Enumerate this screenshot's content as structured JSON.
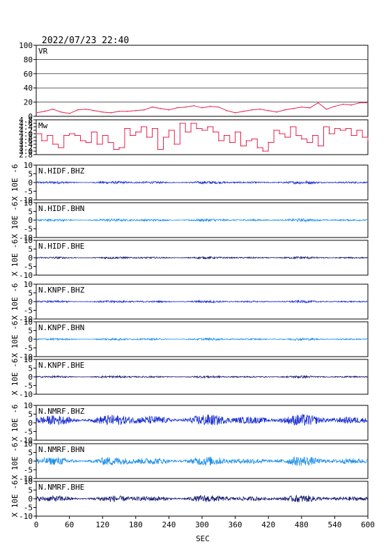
{
  "timestamp": "2022/07/23 22:40",
  "chart_data": [
    {
      "type": "area",
      "label": "VR",
      "ylim": [
        0,
        100
      ],
      "yticks": [
        0,
        20,
        40,
        60,
        80,
        100
      ],
      "yticks_labels": [
        "0",
        "20",
        "40",
        "60",
        "80",
        "100"
      ],
      "grid": true,
      "color": "#e8204b",
      "x": [
        0,
        15,
        30,
        45,
        60,
        75,
        90,
        105,
        120,
        135,
        150,
        165,
        180,
        195,
        210,
        225,
        240,
        255,
        270,
        285,
        300,
        315,
        330,
        345,
        360,
        375,
        390,
        405,
        420,
        435,
        450,
        465,
        480,
        495,
        510,
        525,
        540,
        555,
        570,
        585,
        600
      ],
      "y": [
        5,
        7,
        10,
        6,
        4,
        9,
        10,
        8,
        6,
        5,
        7,
        7,
        8,
        9,
        13,
        11,
        9,
        12,
        13,
        15,
        12,
        14,
        13,
        8,
        5,
        7,
        9,
        10,
        8,
        6,
        9,
        11,
        13,
        12,
        19,
        10,
        14,
        17,
        16,
        19,
        19
      ]
    },
    {
      "type": "line",
      "label": "Mw",
      "ylim": [
        2.8,
        4.8
      ],
      "yticks": [
        2.8,
        3.0,
        3.2,
        3.4,
        3.6,
        3.8,
        4.0,
        4.2,
        4.4,
        4.6,
        4.8
      ],
      "yticks_labels": [
        "2.8",
        "3.0",
        "3.2",
        "3.4",
        "3.6",
        "3.8",
        "4.0",
        "4.2",
        "4.4",
        "4.6",
        "4.8"
      ],
      "grid": false,
      "color": "#e8204b",
      "x": [
        0,
        10,
        20,
        30,
        40,
        50,
        60,
        70,
        80,
        90,
        100,
        110,
        120,
        130,
        140,
        150,
        160,
        170,
        180,
        190,
        200,
        210,
        220,
        230,
        240,
        250,
        260,
        270,
        280,
        290,
        300,
        310,
        320,
        330,
        340,
        350,
        360,
        370,
        380,
        390,
        400,
        410,
        420,
        430,
        440,
        450,
        460,
        470,
        480,
        490,
        500,
        510,
        520,
        530,
        540,
        550,
        560,
        570,
        580,
        590,
        600
      ],
      "y": [
        4.0,
        3.6,
        3.9,
        3.4,
        3.2,
        3.9,
        4.0,
        3.9,
        3.6,
        3.5,
        4.1,
        3.4,
        3.9,
        3.5,
        3.1,
        3.2,
        4.3,
        3.9,
        4.1,
        4.4,
        3.8,
        4.3,
        3.1,
        3.8,
        4.2,
        3.4,
        4.6,
        4.1,
        4.6,
        4.3,
        4.2,
        4.4,
        4.1,
        3.6,
        3.9,
        3.5,
        4.1,
        3.3,
        3.6,
        3.7,
        3.2,
        3.0,
        3.5,
        4.2,
        4.0,
        3.8,
        4.4,
        3.9,
        3.7,
        3.5,
        3.9,
        3.3,
        4.4,
        4.0,
        4.3,
        4.2,
        4.3,
        3.9,
        4.2,
        3.8,
        3.6
      ]
    },
    {
      "type": "line",
      "label": "N.HIDF.BHZ",
      "ylim": [
        -10,
        10
      ],
      "yticks": [
        -10,
        -5,
        0,
        5,
        10
      ],
      "yticks_labels": [
        "-10",
        "-5",
        "0",
        "5",
        "10"
      ],
      "ylabel": "X 10E -6",
      "color": "#1a2fd0",
      "amplitude": 0.5
    },
    {
      "type": "line",
      "label": "N.HIDF.BHN",
      "ylim": [
        -10,
        10
      ],
      "yticks": [
        -10,
        -5,
        0,
        5,
        10
      ],
      "yticks_labels": [
        "-10",
        "-5",
        "0",
        "5",
        "10"
      ],
      "ylabel": "X 10E -6",
      "color": "#1e90e8",
      "amplitude": 0.5
    },
    {
      "type": "line",
      "label": "N.HIDF.BHE",
      "ylim": [
        -10,
        10
      ],
      "yticks": [
        -10,
        -5,
        0,
        5,
        10
      ],
      "yticks_labels": [
        "-10",
        "-5",
        "0",
        "5",
        "10"
      ],
      "ylabel": "X 10E -6",
      "color": "#141a6e",
      "amplitude": 0.4
    },
    {
      "type": "line",
      "label": "N.KNPF.BHZ",
      "ylim": [
        -10,
        10
      ],
      "yticks": [
        -10,
        -5,
        0,
        5,
        10
      ],
      "yticks_labels": [
        "-10",
        "-5",
        "0",
        "5",
        "10"
      ],
      "ylabel": "X 10E -6",
      "color": "#1a2fd0",
      "amplitude": 0.4
    },
    {
      "type": "line",
      "label": "N.KNPF.BHN",
      "ylim": [
        -10,
        10
      ],
      "yticks": [
        -10,
        -5,
        0,
        5,
        10
      ],
      "yticks_labels": [
        "-10",
        "-5",
        "0",
        "5",
        "10"
      ],
      "ylabel": "X 10E -6",
      "color": "#1e90e8",
      "amplitude": 0.4
    },
    {
      "type": "line",
      "label": "N.KNPF.BHE",
      "ylim": [
        -10,
        10
      ],
      "yticks": [
        -10,
        -5,
        0,
        5,
        10
      ],
      "yticks_labels": [
        "-10",
        "-5",
        "0",
        "5",
        "10"
      ],
      "ylabel": "X 10E -6",
      "color": "#141a6e",
      "amplitude": 0.4
    },
    {
      "type": "line",
      "label": "N.NMRF.BHZ",
      "ylim": [
        -10,
        10
      ],
      "yticks": [
        -10,
        -5,
        0,
        5,
        10
      ],
      "yticks_labels": [
        "-10",
        "-5",
        "0",
        "5",
        "10"
      ],
      "ylabel": "X 10E -6",
      "color": "#1a2fd0",
      "amplitude": 2.0,
      "offset": 1.5
    },
    {
      "type": "line",
      "label": "N.NMRF.BHN",
      "ylim": [
        -10,
        10
      ],
      "yticks": [
        -10,
        -5,
        0,
        5,
        10
      ],
      "yticks_labels": [
        "-10",
        "-5",
        "0",
        "5",
        "10"
      ],
      "ylabel": "X 10E -6",
      "color": "#1e90e8",
      "amplitude": 1.6
    },
    {
      "type": "line",
      "label": "N.NMRF.BHE",
      "ylim": [
        -10,
        10
      ],
      "yticks": [
        -10,
        -5,
        0,
        5,
        10
      ],
      "yticks_labels": [
        "-10",
        "-5",
        "0",
        "5",
        "10"
      ],
      "ylabel": "X 10E -6",
      "color": "#141a6e",
      "amplitude": 1.2
    }
  ],
  "x_axis": {
    "label": "SEC",
    "xlim": [
      0,
      600
    ],
    "ticks": [
      0,
      60,
      120,
      180,
      240,
      300,
      360,
      420,
      480,
      540,
      600
    ],
    "tick_labels": [
      "0",
      "60",
      "120",
      "180",
      "240",
      "300",
      "360",
      "420",
      "480",
      "540",
      "600"
    ]
  }
}
